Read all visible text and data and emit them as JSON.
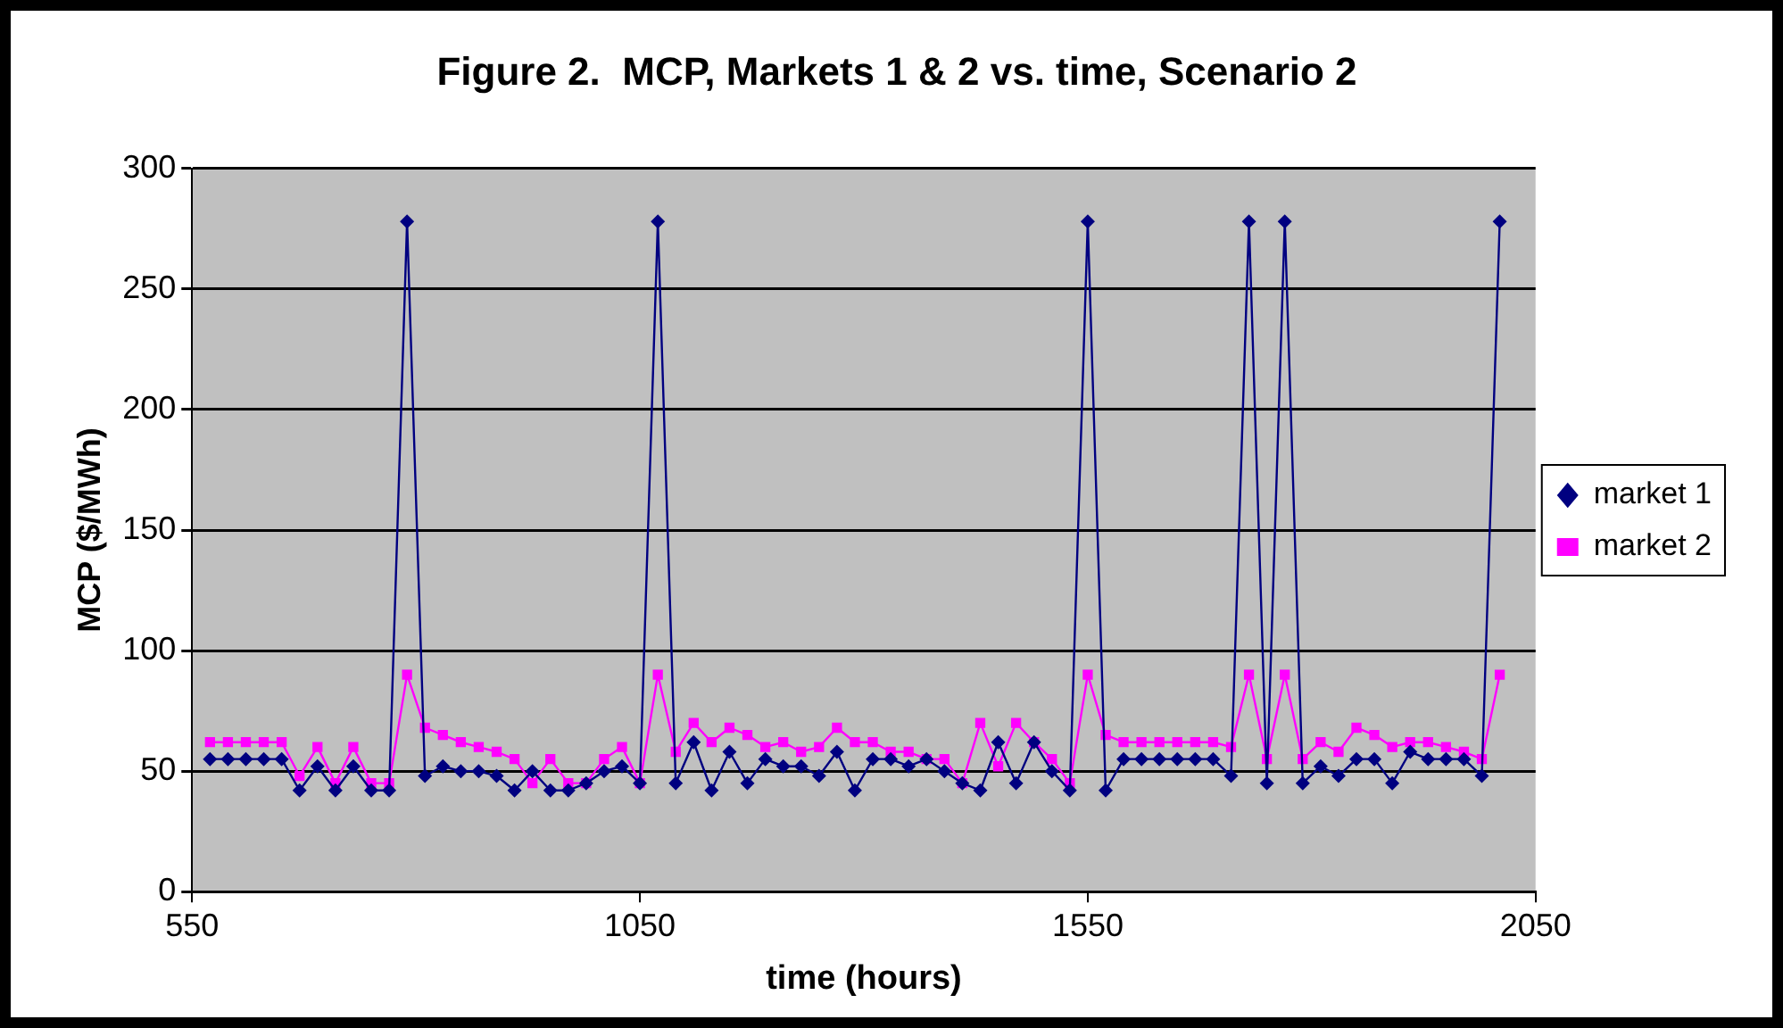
{
  "chart_data": {
    "type": "line",
    "title": "Figure 2.  MCP, Markets 1 & 2 vs. time, Scenario 2",
    "xlabel": "time (hours)",
    "ylabel": "MCP ($/MWh)",
    "x": [
      570,
      590,
      610,
      630,
      650,
      670,
      690,
      710,
      730,
      750,
      770,
      790,
      810,
      830,
      850,
      870,
      890,
      910,
      930,
      950,
      970,
      990,
      1010,
      1030,
      1050,
      1070,
      1090,
      1110,
      1130,
      1150,
      1170,
      1190,
      1210,
      1230,
      1250,
      1270,
      1290,
      1310,
      1330,
      1350,
      1370,
      1390,
      1410,
      1430,
      1450,
      1470,
      1490,
      1510,
      1530,
      1550,
      1570,
      1590,
      1610,
      1630,
      1650,
      1670,
      1690,
      1710,
      1730,
      1750,
      1770,
      1790,
      1810,
      1830,
      1850,
      1870,
      1890,
      1910,
      1930,
      1950,
      1970,
      1990,
      2010
    ],
    "series": [
      {
        "name": "market 1",
        "color": "#000080",
        "marker": "diamond",
        "values": [
          55,
          55,
          55,
          55,
          55,
          42,
          52,
          42,
          52,
          42,
          42,
          278,
          48,
          52,
          50,
          50,
          48,
          42,
          50,
          42,
          42,
          45,
          50,
          52,
          45,
          278,
          45,
          62,
          42,
          58,
          45,
          55,
          52,
          52,
          48,
          58,
          42,
          55,
          55,
          52,
          55,
          50,
          45,
          42,
          62,
          45,
          62,
          50,
          42,
          278,
          42,
          55,
          55,
          55,
          55,
          55,
          55,
          48,
          278,
          45,
          278,
          45,
          52,
          48,
          55,
          55,
          45,
          58,
          55,
          55,
          55,
          48,
          278
        ]
      },
      {
        "name": "market 2",
        "color": "#ff00ff",
        "marker": "square",
        "values": [
          62,
          62,
          62,
          62,
          62,
          48,
          60,
          45,
          60,
          45,
          45,
          90,
          68,
          65,
          62,
          60,
          58,
          55,
          45,
          55,
          45,
          45,
          55,
          60,
          45,
          90,
          58,
          70,
          62,
          68,
          65,
          60,
          62,
          58,
          60,
          68,
          62,
          62,
          58,
          58,
          55,
          55,
          45,
          70,
          52,
          70,
          62,
          55,
          45,
          90,
          65,
          62,
          62,
          62,
          62,
          62,
          62,
          60,
          90,
          55,
          90,
          55,
          62,
          58,
          68,
          65,
          60,
          62,
          62,
          60,
          58,
          55,
          90
        ]
      }
    ],
    "xlim": [
      550,
      2050
    ],
    "xticks": [
      550,
      1050,
      1550,
      2050
    ],
    "ylim": [
      0,
      300
    ],
    "yticks": [
      0,
      50,
      100,
      150,
      200,
      250,
      300
    ],
    "grid": "y",
    "legend": "right",
    "line_style": "solid"
  }
}
